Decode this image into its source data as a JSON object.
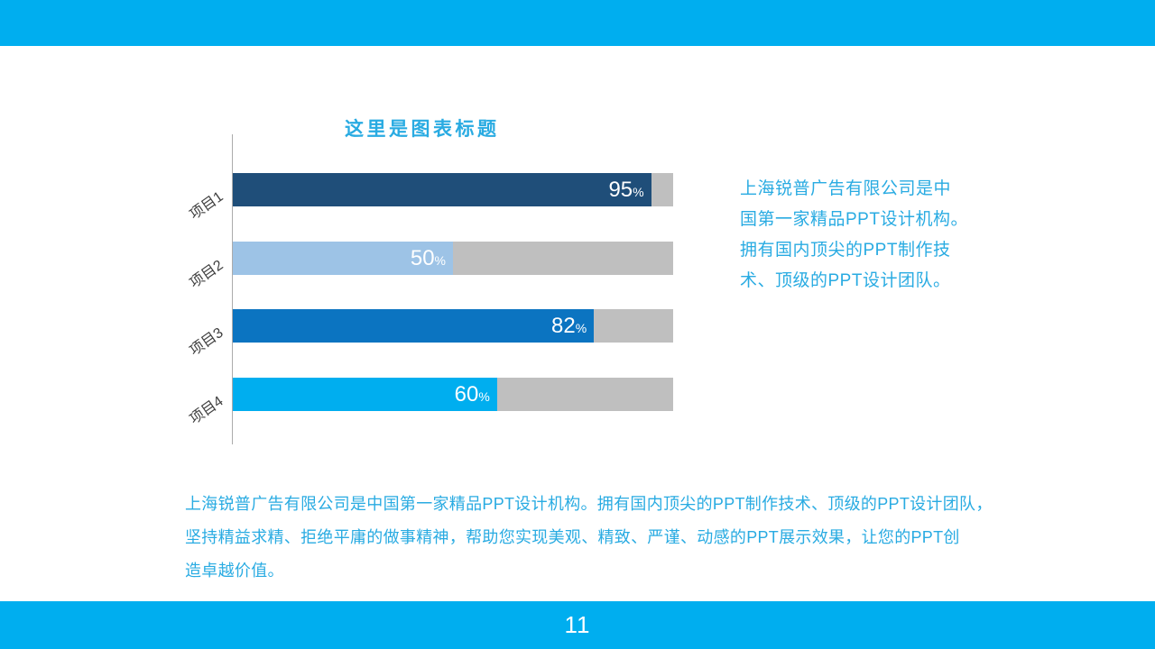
{
  "slide": {
    "page_number": "11"
  },
  "theme": {
    "accent_cyan": "#00AEEF",
    "text_cyan": "#29ABE2",
    "track_gray": "#BFBFBF",
    "category_label_color": "#404040",
    "value_label_color": "#FFFFFF"
  },
  "chart_data": {
    "type": "bar",
    "orientation": "horizontal",
    "title": "这里是图表标题",
    "categories": [
      "项目1",
      "项目2",
      "项目3",
      "项目4"
    ],
    "values": [
      95,
      50,
      82,
      60
    ],
    "unit": "%",
    "xlim": [
      0,
      100
    ],
    "grid": false,
    "legend": "none",
    "bar_colors": [
      "#1F4E79",
      "#9DC3E6",
      "#0B74C1",
      "#00AEEF"
    ],
    "track_color": "#BFBFBF"
  },
  "side_text": {
    "lines": [
      "上海锐普广告有限公司是中",
      "国第一家精品PPT设计机构。",
      "拥有国内顶尖的PPT制作技",
      "术、顶级的PPT设计团队。"
    ]
  },
  "footer_text": {
    "lines": [
      "上海锐普广告有限公司是中国第一家精品PPT设计机构。拥有国内顶尖的PPT制作技术、顶级的PPT设计团队，",
      "坚持精益求精、拒绝平庸的做事精神，帮助您实现美观、精致、严谨、动感的PPT展示效果，让您的PPT创",
      "造卓越价值。"
    ]
  }
}
